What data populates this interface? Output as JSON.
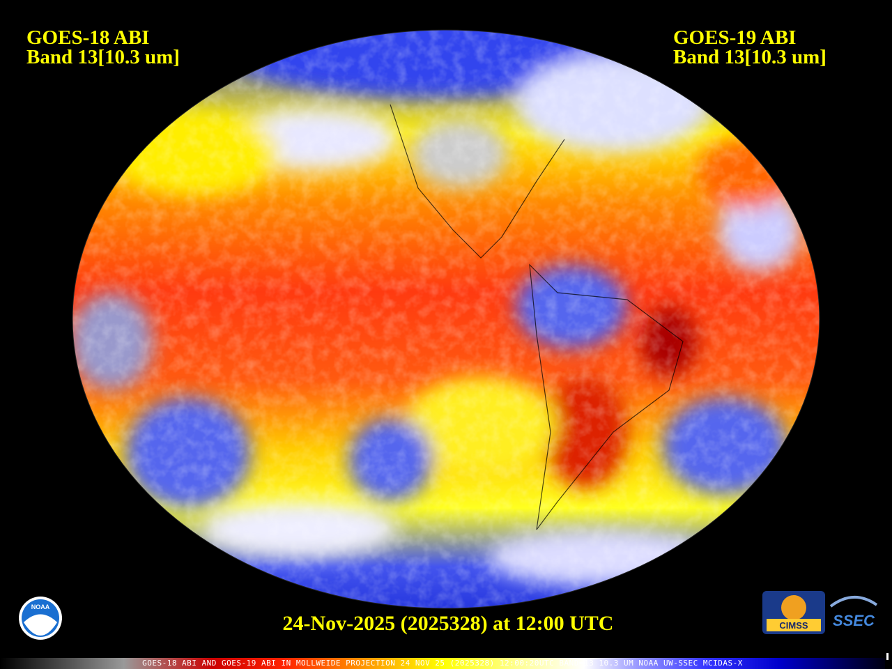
{
  "header": {
    "left": {
      "satellite": "GOES-18 ABI",
      "band": "Band 13[10.3 um]"
    },
    "right": {
      "satellite": "GOES-19 ABI",
      "band": "Band 13[10.3 um]"
    }
  },
  "timestamp": "24-Nov-2025 (2025328) at 12:00 UTC",
  "footer": "GOES-18 ABI AND GOES-19 ABI IN MOLLWEIDE PROJECTION 24 NOV 25 (2025328) 12:00:20UTC BAND=13 10.3 UM NOAA UW-SSEC MCIDAS-X",
  "logos": {
    "noaa": "NOAA",
    "cimss": "CIMSS",
    "ssec": "SSEC"
  }
}
